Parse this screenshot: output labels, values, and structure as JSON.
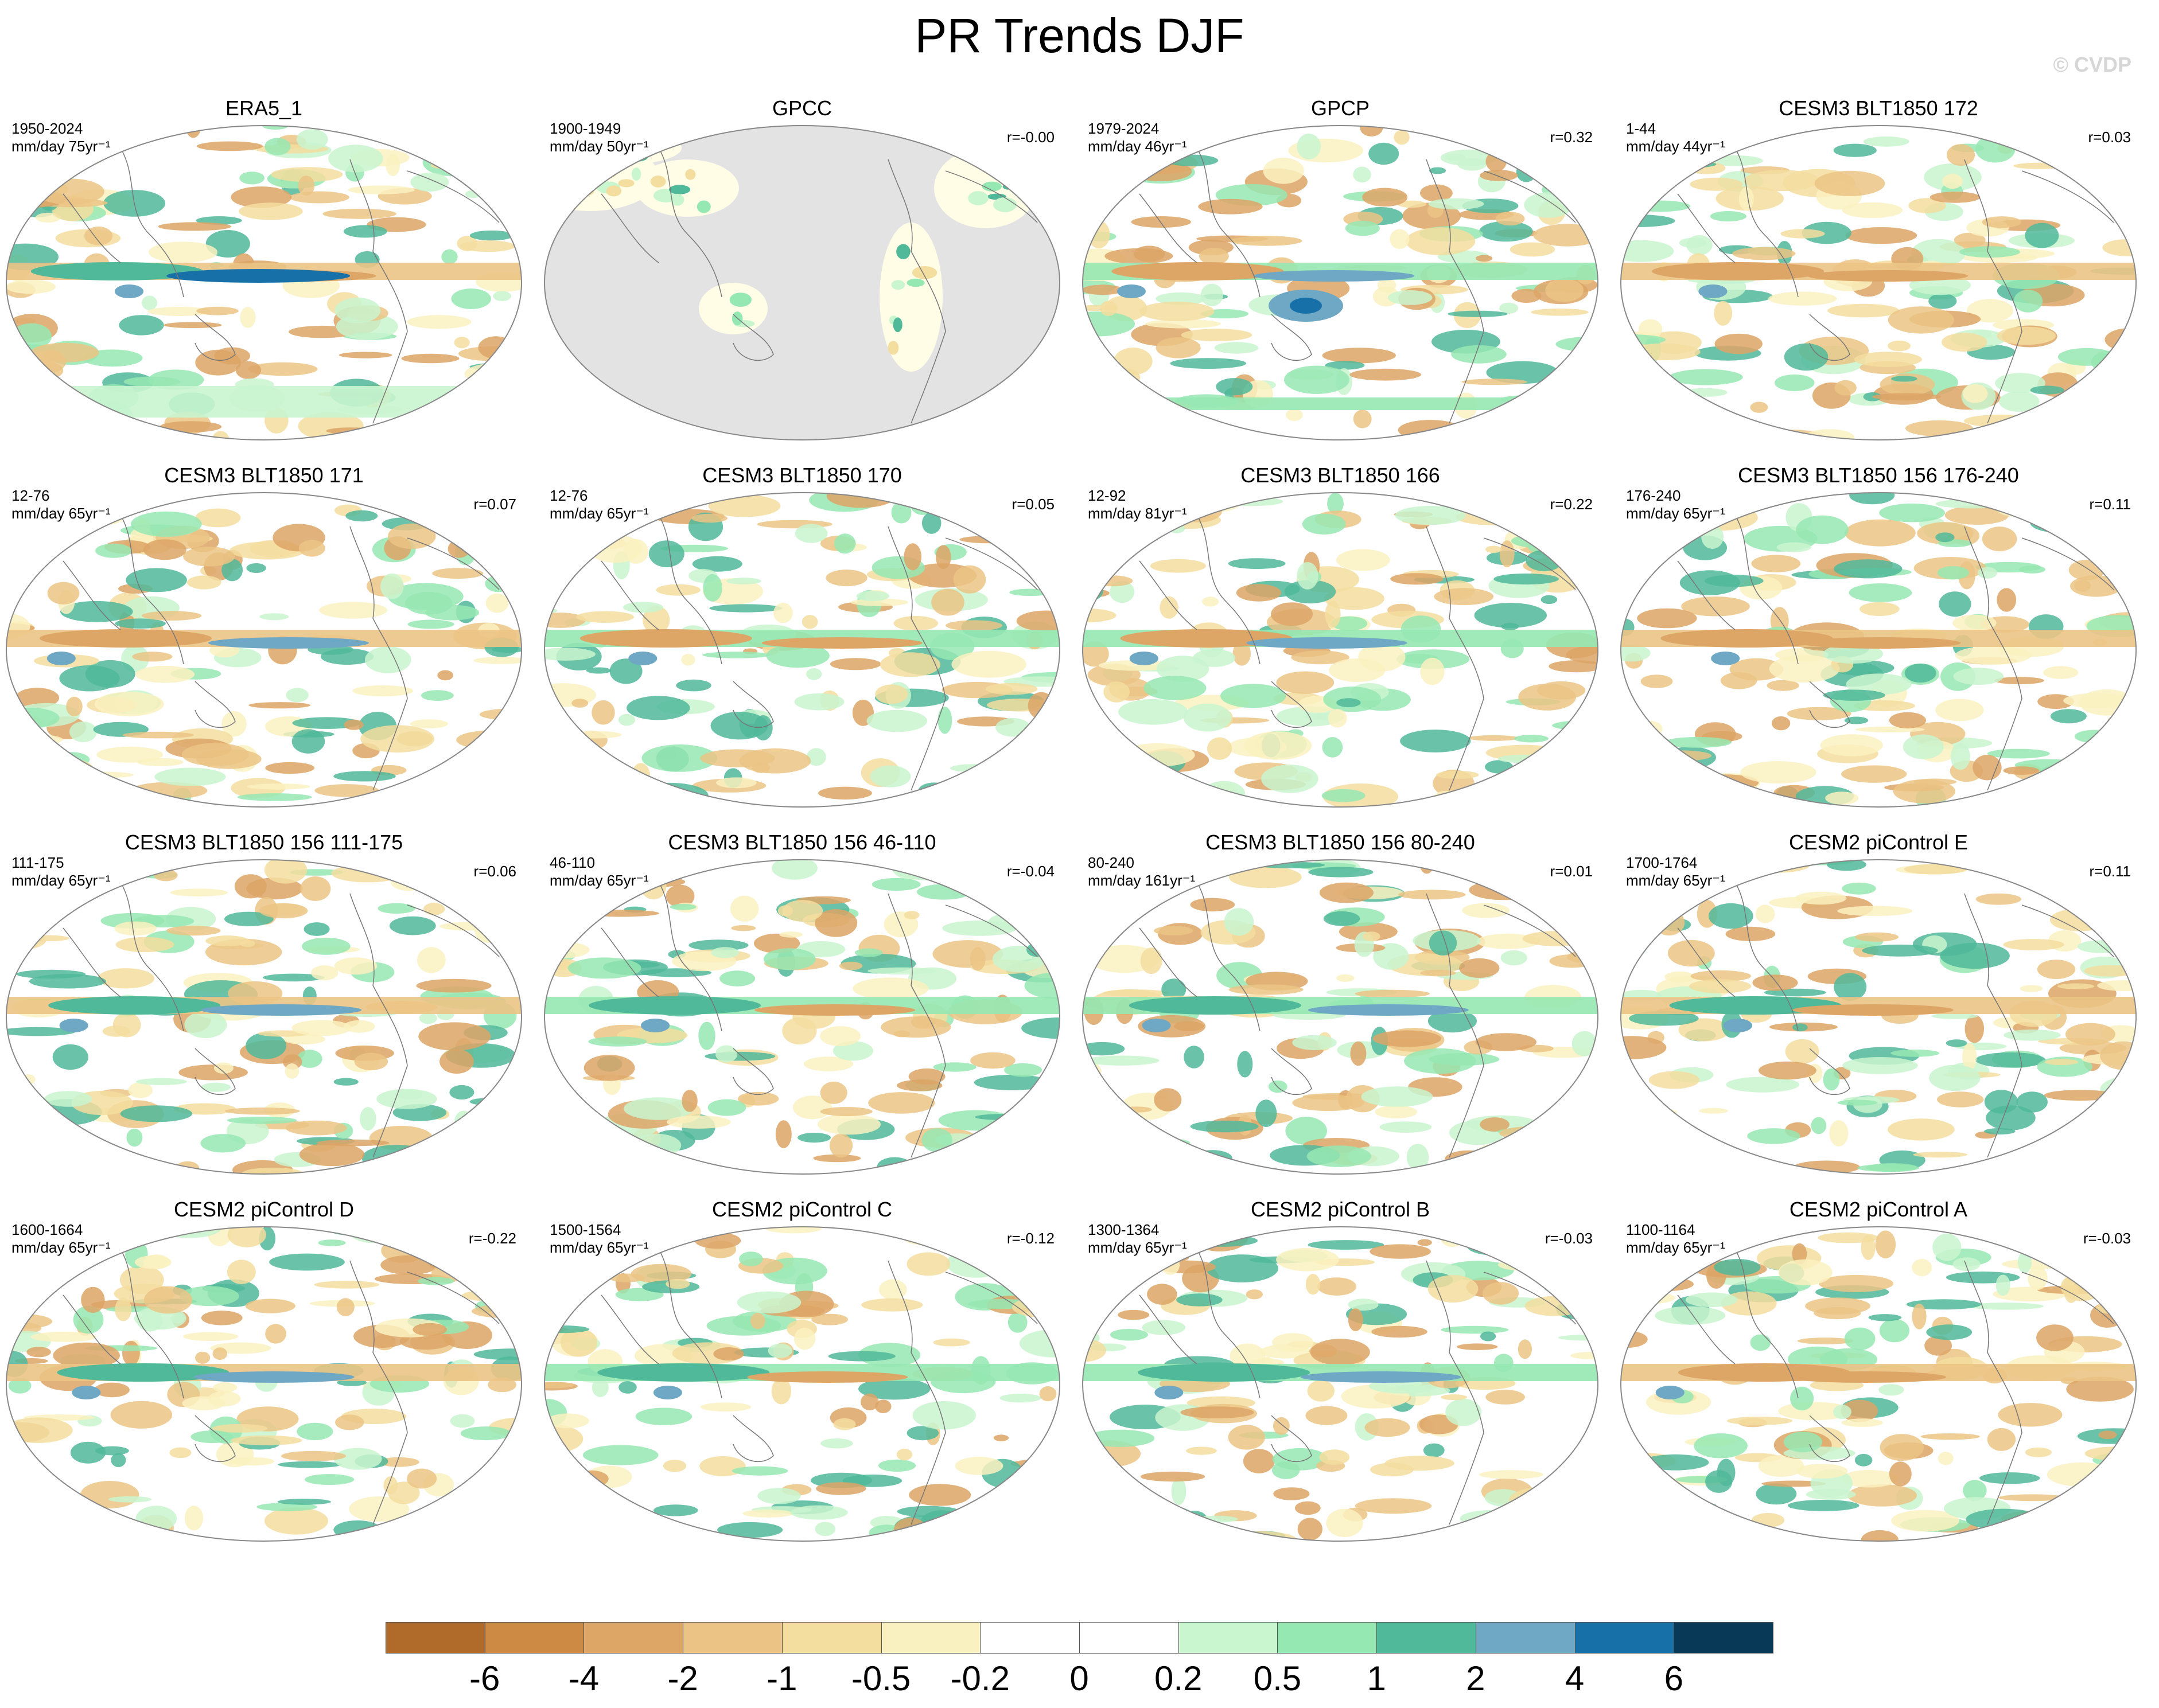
{
  "title": "PR Trends DJF",
  "watermark": "© CVDP",
  "panels": [
    {
      "title": "ERA5_1",
      "period": "1950-2024",
      "units": "mm/day 75yr⁻¹",
      "r": "",
      "style": "era5"
    },
    {
      "title": "GPCC",
      "period": "1900-1949",
      "units": "mm/day 50yr⁻¹",
      "r": "r=-0.00",
      "style": "gpcc"
    },
    {
      "title": "GPCP",
      "period": "1979-2024",
      "units": "mm/day 46yr⁻¹",
      "r": "r=0.32",
      "style": "gpcp"
    },
    {
      "title": "CESM3 BLT1850 172",
      "period": "1-44",
      "units": "mm/day 44yr⁻¹",
      "r": "r=0.03",
      "style": "model"
    },
    {
      "title": "CESM3 BLT1850 171",
      "period": "12-76",
      "units": "mm/day 65yr⁻¹",
      "r": "r=0.07",
      "style": "model"
    },
    {
      "title": "CESM3 BLT1850 170",
      "period": "12-76",
      "units": "mm/day 65yr⁻¹",
      "r": "r=0.05",
      "style": "model"
    },
    {
      "title": "CESM3 BLT1850 166",
      "period": "12-92",
      "units": "mm/day 81yr⁻¹",
      "r": "r=0.22",
      "style": "model"
    },
    {
      "title": "CESM3 BLT1850 156 176-240",
      "period": "176-240",
      "units": "mm/day 65yr⁻¹",
      "r": "r=0.11",
      "style": "model"
    },
    {
      "title": "CESM3 BLT1850 156 111-175",
      "period": "111-175",
      "units": "mm/day 65yr⁻¹",
      "r": "r=0.06",
      "style": "model"
    },
    {
      "title": "CESM3 BLT1850 156 46-110",
      "period": "46-110",
      "units": "mm/day 65yr⁻¹",
      "r": "r=-0.04",
      "style": "model"
    },
    {
      "title": "CESM3 BLT1850 156 80-240",
      "period": "80-240",
      "units": "mm/day 161yr⁻¹",
      "r": "r=0.01",
      "style": "model"
    },
    {
      "title": "CESM2 piControl E",
      "period": "1700-1764",
      "units": "mm/day 65yr⁻¹",
      "r": "r=0.11",
      "style": "model"
    },
    {
      "title": "CESM2 piControl D",
      "period": "1600-1664",
      "units": "mm/day 65yr⁻¹",
      "r": "r=-0.22",
      "style": "model"
    },
    {
      "title": "CESM2 piControl C",
      "period": "1500-1564",
      "units": "mm/day 65yr⁻¹",
      "r": "r=-0.12",
      "style": "model"
    },
    {
      "title": "CESM2 piControl B",
      "period": "1300-1364",
      "units": "mm/day 65yr⁻¹",
      "r": "r=-0.03",
      "style": "model"
    },
    {
      "title": "CESM2 piControl A",
      "period": "1100-1164",
      "units": "mm/day 65yr⁻¹",
      "r": "r=-0.03",
      "style": "model"
    }
  ],
  "colorbar": {
    "colors": [
      "#b06a2a",
      "#cc8a45",
      "#dda566",
      "#ebc485",
      "#f3dd9f",
      "#faf1c0",
      "#ffffff",
      "#ffffff",
      "#c9f5cf",
      "#96e8b3",
      "#50b99a",
      "#6fa8c4",
      "#1870a8",
      "#083a58"
    ],
    "labels": [
      "-6",
      "-4",
      "-2",
      "-1",
      "-0.5",
      "-0.2",
      "0",
      "0.2",
      "0.5",
      "1",
      "2",
      "4",
      "6"
    ]
  }
}
